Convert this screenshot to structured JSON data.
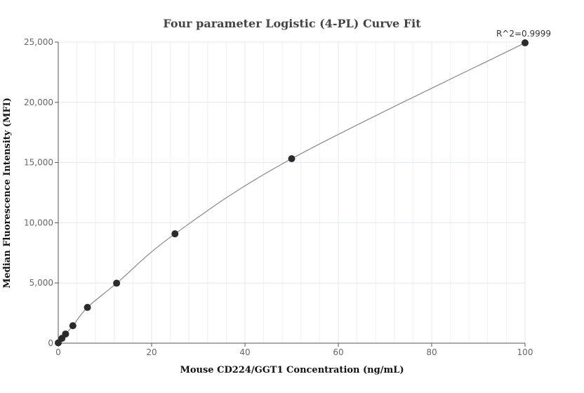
{
  "chart_data": {
    "type": "scatter",
    "title": "Four parameter Logistic (4-PL) Curve Fit",
    "xlabel": "Mouse CD224/GGT1 Concentration (ng/mL)",
    "ylabel": "Median Fluorescence Intensity (MFI)",
    "xlim": [
      0,
      100
    ],
    "ylim": [
      0,
      25000
    ],
    "xticks": [
      0,
      20,
      40,
      60,
      80,
      100
    ],
    "xtick_labels": [
      "0",
      "20",
      "40",
      "60",
      "80",
      "100"
    ],
    "yticks": [
      0,
      5000,
      10000,
      15000,
      20000,
      25000
    ],
    "ytick_labels": [
      "0",
      "5,000",
      "10,000",
      "15,000",
      "20,000",
      "25,000"
    ],
    "grid": true,
    "annotation": "R^2=0.9999",
    "x": [
      0,
      0.78,
      1.56,
      3.125,
      6.25,
      12.5,
      25,
      50,
      100
    ],
    "y": [
      30,
      400,
      760,
      1450,
      2970,
      4980,
      9080,
      15320,
      24940
    ],
    "fit_line": true,
    "colors": {
      "points": "#2b2b2b",
      "line": "#888888",
      "grid": "#e3e7f0",
      "axis": "#555555"
    }
  }
}
